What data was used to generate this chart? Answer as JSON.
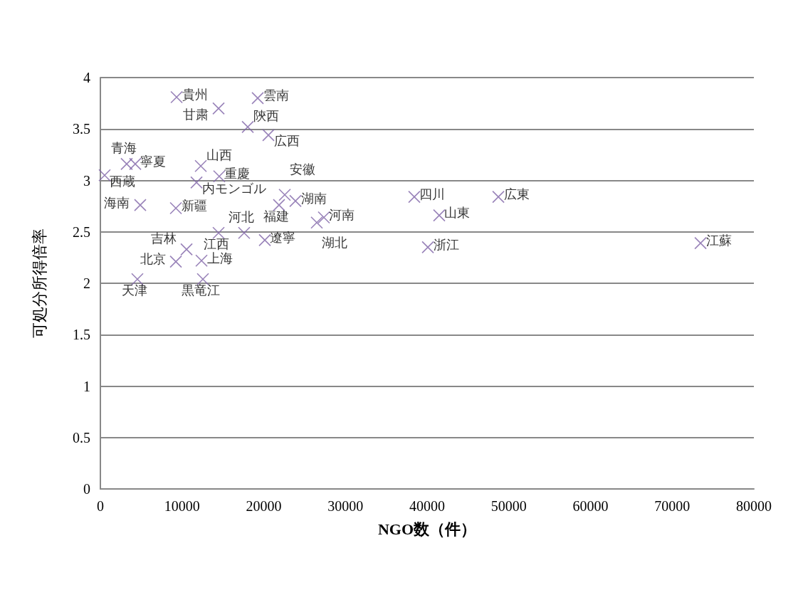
{
  "chart_data": {
    "type": "scatter",
    "xlabel": "NGO数（件）",
    "ylabel": "可処分所得倍率",
    "xlim": [
      0,
      80000
    ],
    "xticks": [
      0,
      10000,
      20000,
      30000,
      40000,
      50000,
      60000,
      70000,
      80000
    ],
    "ylim": [
      0,
      4
    ],
    "yticks": [
      0,
      {
        "value": 0.5,
        "label": "0.5"
      },
      1,
      {
        "value": 1.5,
        "label": "1.5"
      },
      2,
      {
        "value": 2.5,
        "label": "2.5"
      },
      3,
      {
        "value": 3.5,
        "label": "3.5"
      },
      4
    ],
    "grid": "y",
    "legend": false,
    "marker": "cross",
    "series": [
      {
        "name": "貴州",
        "color": "#7f64a8",
        "x": [
          9330
        ],
        "values": [
          3.81
        ]
      },
      {
        "name": "甘粛",
        "color": "#7f64a8",
        "x": [
          14470
        ],
        "values": [
          3.7
        ]
      },
      {
        "name": "雲南",
        "color": "#7f64a8",
        "x": [
          19260
        ],
        "values": [
          3.8
        ]
      },
      {
        "name": "陝西",
        "color": "#7f64a8",
        "x": [
          18040
        ],
        "values": [
          3.52
        ]
      },
      {
        "name": "広西",
        "color": "#7f64a8",
        "x": [
          20570
        ],
        "values": [
          3.44
        ]
      },
      {
        "name": "青海",
        "color": "#7f64a8",
        "x": [
          3220
        ],
        "values": [
          3.16
        ]
      },
      {
        "name": "寧夏",
        "color": "#7f64a8",
        "x": [
          4270
        ],
        "values": [
          3.16
        ]
      },
      {
        "name": "西蔵",
        "color": "#7f64a8",
        "x": [
          520
        ],
        "values": [
          3.05
        ]
      },
      {
        "name": "山西",
        "color": "#7f64a8",
        "x": [
          12290
        ],
        "values": [
          3.14
        ]
      },
      {
        "name": "内モンゴル",
        "color": "#7f64a8",
        "x": [
          11770
        ],
        "values": [
          2.98
        ]
      },
      {
        "name": "重慶",
        "color": "#7f64a8",
        "x": [
          14550
        ],
        "values": [
          3.04
        ]
      },
      {
        "name": "海南",
        "color": "#7f64a8",
        "x": [
          4880
        ],
        "values": [
          2.76
        ]
      },
      {
        "name": "新疆",
        "color": "#7f64a8",
        "x": [
          9240
        ],
        "values": [
          2.73
        ]
      },
      {
        "name": "安徽",
        "color": "#7f64a8",
        "x": [
          22570
        ],
        "values": [
          2.86
        ]
      },
      {
        "name": "福建",
        "color": "#7f64a8",
        "x": [
          21870
        ],
        "values": [
          2.76
        ]
      },
      {
        "name": "湖南",
        "color": "#7f64a8",
        "x": [
          23880
        ],
        "values": [
          2.8
        ]
      },
      {
        "name": "河南",
        "color": "#7f64a8",
        "x": [
          27360
        ],
        "values": [
          2.64
        ]
      },
      {
        "name": "湖北",
        "color": "#7f64a8",
        "x": [
          26490
        ],
        "values": [
          2.59
        ]
      },
      {
        "name": "江西",
        "color": "#7f64a8",
        "x": [
          14470
        ],
        "values": [
          2.49
        ]
      },
      {
        "name": "河北",
        "color": "#7f64a8",
        "x": [
          17600
        ],
        "values": [
          2.49
        ]
      },
      {
        "name": "遼寧",
        "color": "#7f64a8",
        "x": [
          20130
        ],
        "values": [
          2.42
        ]
      },
      {
        "name": "吉林",
        "color": "#7f64a8",
        "x": [
          10550
        ],
        "values": [
          2.33
        ]
      },
      {
        "name": "北京",
        "color": "#7f64a8",
        "x": [
          9240
        ],
        "values": [
          2.21
        ]
      },
      {
        "name": "上海",
        "color": "#7f64a8",
        "x": [
          12380
        ],
        "values": [
          2.22
        ]
      },
      {
        "name": "天津",
        "color": "#7f64a8",
        "x": [
          4530
        ],
        "values": [
          2.04
        ]
      },
      {
        "name": "黒竜江",
        "color": "#7f64a8",
        "x": [
          12550
        ],
        "values": [
          2.04
        ]
      },
      {
        "name": "四川",
        "color": "#7f64a8",
        "x": [
          38430
        ],
        "values": [
          2.84
        ]
      },
      {
        "name": "広東",
        "color": "#7f64a8",
        "x": [
          48720
        ],
        "values": [
          2.84
        ]
      },
      {
        "name": "山東",
        "color": "#7f64a8",
        "x": [
          41480
        ],
        "values": [
          2.66
        ]
      },
      {
        "name": "浙江",
        "color": "#7f64a8",
        "x": [
          40090
        ],
        "values": [
          2.35
        ]
      },
      {
        "name": "江蘇",
        "color": "#7f64a8",
        "x": [
          73470
        ],
        "values": [
          2.39
        ]
      }
    ]
  }
}
